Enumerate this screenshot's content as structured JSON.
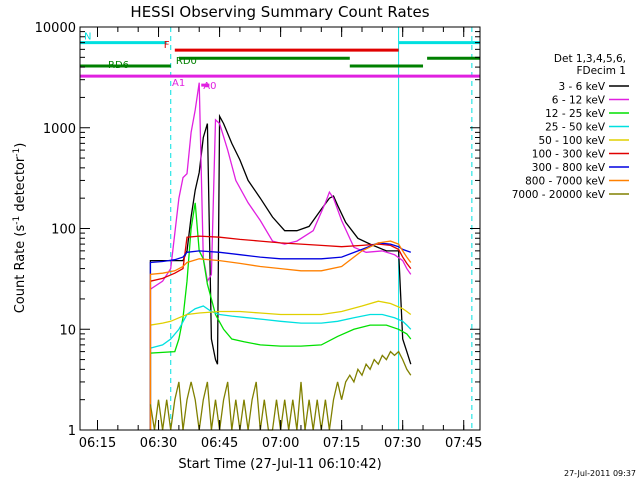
{
  "chart_data": {
    "type": "line",
    "title": "HESSI Observing Summary Count Rates",
    "xlabel": "Start Time (27-Jul-11 06:10:42)",
    "ylabel": "Count Rate (s⁻¹ detector⁻¹)",
    "ylabel_parts": {
      "main": "Count Rate (s",
      "sup1": "-1",
      "mid": " detector",
      "sup2": "-1",
      "end": ")"
    },
    "footer": "27-Jul-2011 09:37",
    "y_scale": "log",
    "ylim": [
      1,
      10000
    ],
    "xlim": [
      "06:10:42",
      "07:49:00"
    ],
    "x_ticks": [
      "06:15",
      "06:30",
      "06:45",
      "07:00",
      "07:15",
      "07:30",
      "07:45"
    ],
    "y_ticks": [
      "1",
      "10",
      "100",
      "1000",
      "10000"
    ],
    "grid": false,
    "legend": {
      "placement": "right",
      "header": [
        "Det 1,3,4,5,6,",
        "FDecim 1"
      ],
      "entries": [
        {
          "label": "3 - 6 keV",
          "color": "#000000"
        },
        {
          "label": "6 - 12 keV",
          "color": "#e020e0"
        },
        {
          "label": "12 - 25 keV",
          "color": "#00e000"
        },
        {
          "label": "25 - 50 keV",
          "color": "#00e0e0"
        },
        {
          "label": "50 - 100 keV",
          "color": "#e0d000"
        },
        {
          "label": "100 - 300 keV",
          "color": "#e00000"
        },
        {
          "label": "300 - 800 keV",
          "color": "#0000e0"
        },
        {
          "label": "800 - 7000 keV",
          "color": "#ff8000"
        },
        {
          "label": "7000 - 20000 keV",
          "color": "#808000"
        }
      ]
    },
    "attenuator_bars": [
      {
        "label": "N",
        "color": "#00e0e0",
        "level": 7000,
        "segments": [
          [
            "06:10:42",
            "06:32:00"
          ],
          [
            "07:29:00",
            "07:49:00"
          ]
        ]
      },
      {
        "label": "F",
        "color": "#e00000",
        "level": 5900,
        "segments": [
          [
            "06:34:00",
            "07:29:00"
          ]
        ]
      },
      {
        "label": "RD0",
        "color": "#008000",
        "level": 4900,
        "segments": [
          [
            "06:35:00",
            "07:17:00"
          ],
          [
            "07:36:00",
            "07:49:00"
          ]
        ]
      },
      {
        "label": "RD6",
        "color": "#008000",
        "level": 4100,
        "segments": [
          [
            "06:10:42",
            "06:33:00"
          ],
          [
            "07:17:00",
            "07:35:00"
          ]
        ]
      },
      {
        "label": "A0",
        "color": "#e020e0",
        "level": 2650,
        "segments": [
          [
            "06:40:30",
            "06:42:30"
          ]
        ]
      },
      {
        "label": "A1",
        "color": "#e020e0",
        "level": 3250,
        "segments": [
          [
            "06:10:42",
            "07:49:00"
          ]
        ]
      }
    ],
    "vlines": [
      {
        "time": "06:10:42",
        "color": "#00e0e0",
        "style": "solid"
      },
      {
        "time": "06:33:00",
        "color": "#00e0e0",
        "style": "dashed"
      },
      {
        "time": "07:29:00",
        "color": "#00e0e0",
        "style": "solid"
      },
      {
        "time": "07:47:00",
        "color": "#00e0e0",
        "style": "dashed"
      }
    ],
    "series": [
      {
        "name": "3 - 6 keV",
        "color": "#000000",
        "x": [
          "06:28:00",
          "06:28:00",
          "06:36:00",
          "06:37:00",
          "06:38:00",
          "06:39:00",
          "06:40:00",
          "06:41:00",
          "06:42:00",
          "06:43:00",
          "06:44:00",
          "06:44:30",
          "06:45:00",
          "06:46:00",
          "06:48:00",
          "06:50:00",
          "06:52:00",
          "06:55:00",
          "06:58:00",
          "07:01:00",
          "07:04:00",
          "07:07:00",
          "07:10:00",
          "07:12:00",
          "07:13:00",
          "07:14:00",
          "07:16:00",
          "07:19:00",
          "07:22:00",
          "07:26:00",
          "07:29:00",
          "07:30:00",
          "07:31:00",
          "07:32:00"
        ],
        "y": [
          1,
          48,
          48,
          60,
          130,
          240,
          360,
          800,
          1100,
          8,
          5,
          4.5,
          1300,
          1100,
          700,
          480,
          300,
          200,
          130,
          95,
          95,
          105,
          155,
          200,
          210,
          170,
          115,
          80,
          70,
          60,
          60,
          8,
          6,
          4.5
        ]
      },
      {
        "name": "6 - 12 keV",
        "color": "#e020e0",
        "x": [
          "06:28:00",
          "06:28:00",
          "06:31:00",
          "06:33:00",
          "06:35:00",
          "06:36:00",
          "06:37:00",
          "06:38:00",
          "06:39:00",
          "06:40:00",
          "06:41:00",
          "06:41:30",
          "06:42:00",
          "06:43:00",
          "06:44:00",
          "06:45:00",
          "06:47:00",
          "06:49:00",
          "06:52:00",
          "06:55:00",
          "06:58:00",
          "07:01:00",
          "07:04:00",
          "07:08:00",
          "07:11:00",
          "07:12:00",
          "07:13:00",
          "07:15:00",
          "07:18:00",
          "07:21:00",
          "07:25:00",
          "07:28:00",
          "07:30:00",
          "07:31:00",
          "07:32:00"
        ],
        "y": [
          1,
          25,
          30,
          40,
          200,
          320,
          350,
          900,
          1500,
          2800,
          50,
          40,
          30,
          35,
          1200,
          1100,
          600,
          300,
          180,
          120,
          75,
          70,
          75,
          95,
          180,
          230,
          200,
          120,
          65,
          58,
          60,
          55,
          48,
          40,
          35
        ]
      },
      {
        "name": "12 - 25 keV",
        "color": "#00e000",
        "x": [
          "06:28:00",
          "06:28:00",
          "06:34:00",
          "06:35:00",
          "06:36:00",
          "06:37:00",
          "06:38:00",
          "06:39:00",
          "06:40:00",
          "06:41:00",
          "06:42:00",
          "06:43:00",
          "06:44:00",
          "06:46:00",
          "06:48:00",
          "06:51:00",
          "06:55:00",
          "07:00:00",
          "07:05:00",
          "07:10:00",
          "07:14:00",
          "07:18:00",
          "07:22:00",
          "07:26:00",
          "07:29:00",
          "07:31:00",
          "07:32:00"
        ],
        "y": [
          1,
          5.8,
          6,
          8,
          13,
          30,
          100,
          180,
          60,
          50,
          28,
          20,
          14,
          10,
          8,
          7.5,
          7,
          6.8,
          6.8,
          7,
          8.5,
          10,
          11,
          11,
          10,
          9,
          8
        ]
      },
      {
        "name": "25 - 50 keV",
        "color": "#00e0e0",
        "x": [
          "06:28:00",
          "06:28:00",
          "06:31:00",
          "06:33:00",
          "06:35:00",
          "06:37:00",
          "06:39:00",
          "06:41:00",
          "06:43:00",
          "06:45:00",
          "06:48:00",
          "06:52:00",
          "06:56:00",
          "07:00:00",
          "07:05:00",
          "07:10:00",
          "07:14:00",
          "07:18:00",
          "07:22:00",
          "07:25:00",
          "07:28:00",
          "07:30:00",
          "07:31:00",
          "07:32:00"
        ],
        "y": [
          1,
          6.5,
          7,
          8,
          10,
          14,
          16,
          17,
          15,
          14,
          13.5,
          13,
          12.5,
          12,
          11.5,
          11.5,
          12,
          13,
          14,
          14,
          13,
          12,
          11,
          10
        ]
      },
      {
        "name": "50 - 100 keV",
        "color": "#e0d000",
        "x": [
          "06:28:00",
          "06:28:00",
          "06:31:00",
          "06:33:00",
          "06:35:00",
          "06:37:00",
          "06:40:00",
          "06:45:00",
          "06:50:00",
          "06:55:00",
          "07:00:00",
          "07:05:00",
          "07:10:00",
          "07:15:00",
          "07:20:00",
          "07:24:00",
          "07:27:00",
          "07:30:00",
          "07:31:00",
          "07:32:00"
        ],
        "y": [
          1,
          11,
          11.5,
          12,
          13,
          14,
          14.5,
          15,
          15,
          14.5,
          14,
          14,
          14,
          15,
          17,
          19,
          18,
          16,
          15,
          14
        ]
      },
      {
        "name": "100 - 300 keV",
        "color": "#e00000",
        "x": [
          "06:28:00",
          "06:28:00",
          "06:31:00",
          "06:34:00",
          "06:36:00",
          "06:37:00",
          "06:40:00",
          "06:45:00",
          "06:50:00",
          "06:55:00",
          "07:00:00",
          "07:05:00",
          "07:10:00",
          "07:15:00",
          "07:20:00",
          "07:24:00",
          "07:27:00",
          "07:29:00",
          "07:30:00",
          "07:31:00",
          "07:32:00"
        ],
        "y": [
          1,
          30,
          32,
          36,
          40,
          82,
          84,
          82,
          78,
          75,
          72,
          70,
          68,
          66,
          68,
          70,
          68,
          62,
          52,
          45,
          40
        ]
      },
      {
        "name": "300 - 800 keV",
        "color": "#0000e0",
        "x": [
          "06:28:00",
          "06:28:00",
          "06:31:00",
          "06:34:00",
          "06:36:00",
          "06:37:00",
          "06:40:00",
          "06:45:00",
          "06:50:00",
          "06:55:00",
          "07:00:00",
          "07:05:00",
          "07:10:00",
          "07:15:00",
          "07:20:00",
          "07:24:00",
          "07:27:00",
          "07:29:00",
          "07:30:00",
          "07:31:00",
          "07:32:00"
        ],
        "y": [
          1,
          46,
          47,
          49,
          52,
          58,
          60,
          58,
          55,
          52,
          50,
          50,
          50,
          52,
          62,
          72,
          70,
          66,
          62,
          60,
          58
        ]
      },
      {
        "name": "800 - 7000 keV",
        "color": "#ff8000",
        "x": [
          "06:28:00",
          "06:28:00",
          "06:31:00",
          "06:34:00",
          "06:36:00",
          "06:37:00",
          "06:40:00",
          "06:45:00",
          "06:50:00",
          "06:55:00",
          "07:00:00",
          "07:05:00",
          "07:10:00",
          "07:15:00",
          "07:20:00",
          "07:24:00",
          "07:27:00",
          "07:29:00",
          "07:30:00",
          "07:31:00",
          "07:32:00"
        ],
        "y": [
          1,
          35,
          36,
          38,
          42,
          46,
          50,
          48,
          45,
          42,
          40,
          38,
          38,
          42,
          60,
          72,
          75,
          70,
          60,
          52,
          46
        ]
      },
      {
        "name": "7000 - 20000 keV",
        "color": "#808000",
        "x": [
          "06:28:00",
          "06:29:00",
          "06:30:00",
          "06:31:00",
          "06:32:00",
          "06:33:00",
          "06:34:00",
          "06:35:00",
          "06:36:00",
          "06:37:00",
          "06:38:00",
          "06:39:00",
          "06:40:00",
          "06:41:00",
          "06:42:00",
          "06:43:00",
          "06:44:00",
          "06:45:00",
          "06:46:00",
          "06:47:00",
          "06:48:00",
          "06:49:00",
          "06:50:00",
          "06:51:00",
          "06:52:00",
          "06:53:00",
          "06:54:00",
          "06:55:00",
          "06:56:00",
          "06:57:00",
          "06:58:00",
          "06:59:00",
          "07:00:00",
          "07:01:00",
          "07:02:00",
          "07:03:00",
          "07:04:00",
          "07:05:00",
          "07:06:00",
          "07:07:00",
          "07:08:00",
          "07:09:00",
          "07:10:00",
          "07:11:00",
          "07:12:00",
          "07:13:00",
          "07:14:00",
          "07:15:00",
          "07:16:00",
          "07:17:00",
          "07:18:00",
          "07:19:00",
          "07:20:00",
          "07:21:00",
          "07:22:00",
          "07:23:00",
          "07:24:00",
          "07:25:00",
          "07:26:00",
          "07:27:00",
          "07:28:00",
          "07:29:00",
          "07:30:00",
          "07:31:00",
          "07:32:00"
        ],
        "y": [
          1.8,
          1,
          2,
          1,
          2,
          1,
          2,
          3,
          1,
          2,
          3,
          2,
          1,
          2,
          3,
          1,
          2,
          1,
          2,
          3,
          1,
          2,
          1,
          2,
          1,
          2,
          3,
          1,
          2,
          1,
          1,
          2,
          1,
          2,
          1,
          2,
          1,
          3,
          1,
          2,
          1,
          2,
          1,
          2,
          1,
          2,
          3,
          2,
          3,
          3.5,
          3,
          4,
          3.5,
          4.5,
          4,
          5,
          4.5,
          5.5,
          5,
          6,
          5.5,
          6,
          5,
          4,
          3.5
        ]
      }
    ]
  }
}
